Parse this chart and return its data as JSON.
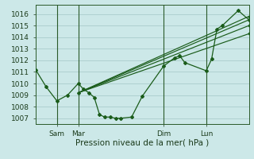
{
  "background_color": "#cce8e8",
  "grid_color": "#aacccc",
  "line_color": "#1a5c1a",
  "ylabel_color": "#1a3a1a",
  "title": "Pression niveau de la mer( hPa )",
  "yticks": [
    1007,
    1008,
    1009,
    1010,
    1011,
    1012,
    1013,
    1014,
    1015,
    1016
  ],
  "ylim": [
    1006.5,
    1016.8
  ],
  "xlim": [
    0,
    80
  ],
  "xtick_positions": [
    8,
    16,
    48,
    64
  ],
  "xtick_labels": [
    "Sam",
    "Mar",
    "Dim",
    "Lun"
  ],
  "vlines": [
    8,
    16,
    48,
    64
  ],
  "series1_x": [
    0,
    4,
    8,
    12,
    16,
    18,
    20,
    22,
    24,
    26,
    28,
    30,
    32,
    36,
    40,
    48,
    52,
    54,
    56,
    64,
    66,
    68,
    70,
    76,
    80
  ],
  "series1_y": [
    1011.2,
    1009.7,
    1008.5,
    1009.0,
    1010.0,
    1009.5,
    1009.2,
    1008.8,
    1007.3,
    1007.1,
    1007.1,
    1007.0,
    1007.0,
    1007.1,
    1008.9,
    1011.5,
    1012.2,
    1012.4,
    1011.8,
    1011.1,
    1012.1,
    1014.7,
    1015.0,
    1016.3,
    1015.5
  ],
  "series2_x": [
    16,
    80
  ],
  "series2_y": [
    1009.2,
    1015.5
  ],
  "series3_x": [
    16,
    80
  ],
  "series3_y": [
    1009.2,
    1015.8
  ],
  "series4_x": [
    16,
    80
  ],
  "series4_y": [
    1009.2,
    1015.0
  ],
  "series5_x": [
    16,
    80
  ],
  "series5_y": [
    1009.2,
    1014.3
  ]
}
